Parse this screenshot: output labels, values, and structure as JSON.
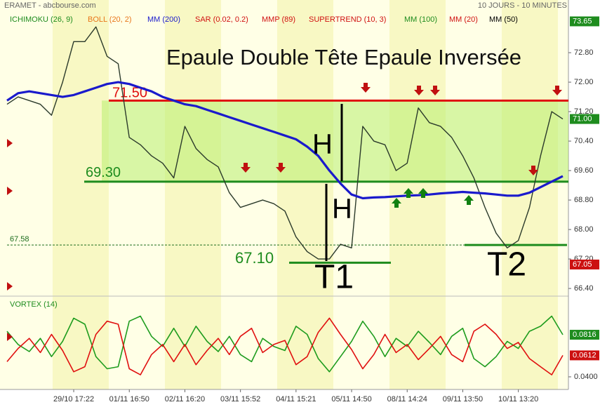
{
  "header": {
    "left": "ERAMET - abcbourse.com",
    "right": "10 JOURS - 10 MINUTES"
  },
  "chart_data": [
    {
      "type": "line",
      "title": "Epaule Double Tête Epaule Inversée",
      "indicators": [
        {
          "name": "ICHIMOKU (26, 9)",
          "color": "#1e8c1e"
        },
        {
          "name": "BOLL (20, 2)",
          "color": "#e8761a"
        },
        {
          "name": "MM (200)",
          "color": "#1a1acc"
        },
        {
          "name": "SAR (0.02, 0.2)",
          "color": "#d01010"
        },
        {
          "name": "MMP (89)",
          "color": "#d01010"
        },
        {
          "name": "SUPERTREND (10, 3)",
          "color": "#d01010"
        },
        {
          "name": "MM (100)",
          "color": "#1e8c1e"
        },
        {
          "name": "MM (20)",
          "color": "#d01010"
        },
        {
          "name": "MM (50)",
          "color": "#000000"
        }
      ],
      "categories": [
        null,
        null,
        null,
        null,
        null,
        null,
        "29/10 17:22",
        null,
        null,
        null,
        null,
        "01/11 16:50",
        null,
        null,
        null,
        null,
        "02/11 16:20",
        null,
        null,
        null,
        null,
        "03/11 15:52",
        null,
        null,
        null,
        null,
        "04/11 15:21",
        null,
        null,
        null,
        null,
        "05/11 14:50",
        null,
        null,
        null,
        null,
        "08/11 14:24",
        null,
        null,
        null,
        null,
        "09/11 13:50",
        null,
        null,
        null,
        null,
        "10/11 13:20",
        null,
        null,
        null,
        null
      ],
      "series": [
        {
          "color": "#2b3a2b",
          "values": [
            71.4,
            71.6,
            71.5,
            71.4,
            71.1,
            72.0,
            73.1,
            73.1,
            73.5,
            72.7,
            72.5,
            70.5,
            70.3,
            70.0,
            69.8,
            69.4,
            70.8,
            70.2,
            69.9,
            69.7,
            69.0,
            68.6,
            68.7,
            68.8,
            68.7,
            68.5,
            67.8,
            67.4,
            67.2,
            67.2,
            67.6,
            67.5,
            70.8,
            70.4,
            70.3,
            69.6,
            69.8,
            71.3,
            70.9,
            70.8,
            70.5,
            70.0,
            69.4,
            68.6,
            67.9,
            67.5,
            67.7,
            68.6,
            70.0,
            71.2,
            71.0
          ]
        },
        {
          "name": "MM (200)",
          "color": "#1a1acc",
          "values": [
            71.5,
            71.7,
            71.75,
            71.7,
            71.65,
            71.6,
            71.65,
            71.75,
            71.85,
            71.95,
            72.0,
            71.95,
            71.85,
            71.75,
            71.6,
            71.5,
            71.4,
            71.35,
            71.25,
            71.15,
            71.05,
            70.95,
            70.85,
            70.75,
            70.65,
            70.55,
            70.45,
            70.25,
            70.0,
            69.6,
            69.25,
            68.95,
            68.85,
            68.87,
            68.88,
            68.9,
            68.92,
            68.93,
            68.95,
            68.98,
            69.0,
            69.02,
            69.0,
            68.98,
            68.95,
            68.92,
            68.92,
            69.0,
            69.15,
            69.3,
            69.45
          ]
        }
      ],
      "ylim": [
        66.23,
        74.23
      ],
      "yticks": [
        {
          "value": 72.8,
          "label": "72.80"
        },
        {
          "value": 72.0,
          "label": "72.00"
        },
        {
          "value": 71.2,
          "label": "71.20"
        },
        {
          "value": 70.4,
          "label": "70.40"
        },
        {
          "value": 69.6,
          "label": "69.60"
        },
        {
          "value": 68.8,
          "label": "68.80"
        },
        {
          "value": 68.0,
          "label": "68.00"
        },
        {
          "value": 67.2,
          "label": "67.20"
        },
        {
          "value": 66.4,
          "label": "66.40"
        }
      ],
      "price_markers": [
        {
          "value": 73.65,
          "label": "73.65",
          "color": "#1e8c1e"
        },
        {
          "value": 71.0,
          "label": "71.00",
          "color": "#1e8c1e"
        },
        {
          "value": 67.05,
          "label": "67.05",
          "color": "#cc1010"
        }
      ],
      "levels": [
        {
          "value": 71.5,
          "label": "71.50",
          "color": "#e01010"
        },
        {
          "value": 69.3,
          "label": "69.30",
          "color": "#1e8c1e"
        },
        {
          "value": 67.58,
          "label": "67.58",
          "color": "#1e6e1e"
        },
        {
          "value": 67.1,
          "label": "67.10",
          "color": "#1e8c1e"
        }
      ],
      "annotations": [
        "H",
        "H",
        "T1",
        "T2"
      ]
    },
    {
      "type": "line",
      "title": "VORTEX (14)",
      "series": [
        {
          "color": "#1e9c1e",
          "values": [
            0.085,
            0.072,
            0.065,
            0.078,
            0.06,
            0.075,
            0.098,
            0.092,
            0.06,
            0.048,
            0.05,
            0.095,
            0.1,
            0.08,
            0.07,
            0.088,
            0.07,
            0.09,
            0.075,
            0.065,
            0.08,
            0.062,
            0.055,
            0.078,
            0.07,
            0.066,
            0.09,
            0.082,
            0.058,
            0.045,
            0.06,
            0.075,
            0.095,
            0.08,
            0.06,
            0.078,
            0.07,
            0.085,
            0.074,
            0.062,
            0.08,
            0.088,
            0.058,
            0.05,
            0.06,
            0.075,
            0.068,
            0.085,
            0.09,
            0.1,
            0.0816
          ]
        },
        {
          "color": "#e01010",
          "values": [
            0.055,
            0.068,
            0.078,
            0.064,
            0.082,
            0.066,
            0.045,
            0.05,
            0.082,
            0.095,
            0.092,
            0.048,
            0.042,
            0.062,
            0.072,
            0.055,
            0.072,
            0.052,
            0.066,
            0.078,
            0.062,
            0.08,
            0.088,
            0.064,
            0.072,
            0.076,
            0.052,
            0.06,
            0.084,
            0.098,
            0.082,
            0.067,
            0.048,
            0.062,
            0.082,
            0.064,
            0.072,
            0.057,
            0.068,
            0.08,
            0.062,
            0.055,
            0.085,
            0.092,
            0.082,
            0.068,
            0.074,
            0.058,
            0.05,
            0.042,
            0.0612
          ]
        }
      ],
      "ylim": [
        0.0275,
        0.1177
      ],
      "yticks": [
        {
          "value": 0.04,
          "label": "0.0400"
        }
      ],
      "price_markers": [
        {
          "value": 0.0816,
          "color": "#1e8c1e"
        },
        {
          "value": 0.0612,
          "color": "#cc1010"
        }
      ]
    }
  ]
}
